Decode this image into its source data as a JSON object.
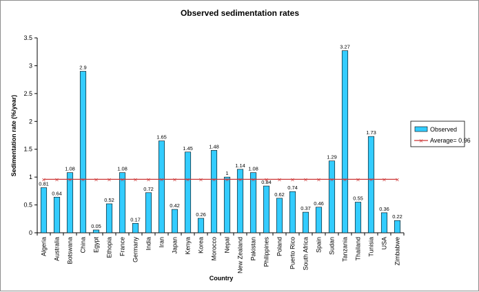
{
  "chart_data": {
    "type": "bar",
    "title": "Observed sedimentation rates",
    "xlabel": "Country",
    "ylabel": "Sedimentation rate (%/year)",
    "ylim": [
      0,
      3.5
    ],
    "yticks": [
      "0",
      "0.5",
      "1",
      "1.5",
      "2",
      "2.5",
      "3",
      "3.5"
    ],
    "categories": [
      "Algeria",
      "Australia",
      "Botswana",
      "China",
      "Egypt",
      "Ethopia",
      "France",
      "Germany",
      "India",
      "Iran",
      "Japan",
      "Kenya",
      "Korea",
      "Morocco",
      "Nepal",
      "New Zealand",
      "Pakistan",
      "Philippines",
      "Poland",
      "Puerto Rico",
      "South Africa",
      "Spain",
      "Sudan",
      "Tanzania",
      "Thailand",
      "Tunisia",
      "USA",
      "Zimbabwe"
    ],
    "series": [
      {
        "name": "Observed",
        "type": "bar",
        "color": "#33ccff",
        "values": [
          0.81,
          0.64,
          1.08,
          2.9,
          0.05,
          0.52,
          1.08,
          0.17,
          0.72,
          1.65,
          0.42,
          1.45,
          0.26,
          1.48,
          1,
          1.14,
          1.08,
          0.84,
          0.62,
          0.74,
          0.37,
          0.46,
          1.29,
          3.27,
          0.55,
          1.73,
          0.36,
          0.22
        ],
        "labels": [
          "0.81",
          "0.64",
          "1.08",
          "2.9",
          "0.05",
          "0.52",
          "1.08",
          "0.17",
          "0.72",
          "1.65",
          "0.42",
          "1.45",
          "0.26",
          "1.48",
          "1",
          "1.14",
          "1.08",
          "0.84",
          "0.62",
          "0.74",
          "0.37",
          "0.46",
          "1.29",
          "3.27",
          "0.55",
          "1.73",
          "0.36",
          "0.22"
        ]
      },
      {
        "name": "Average= 0.96",
        "type": "line",
        "color": "#cc3333",
        "value": 0.96
      }
    ],
    "legend_position": "right",
    "grid": false
  }
}
